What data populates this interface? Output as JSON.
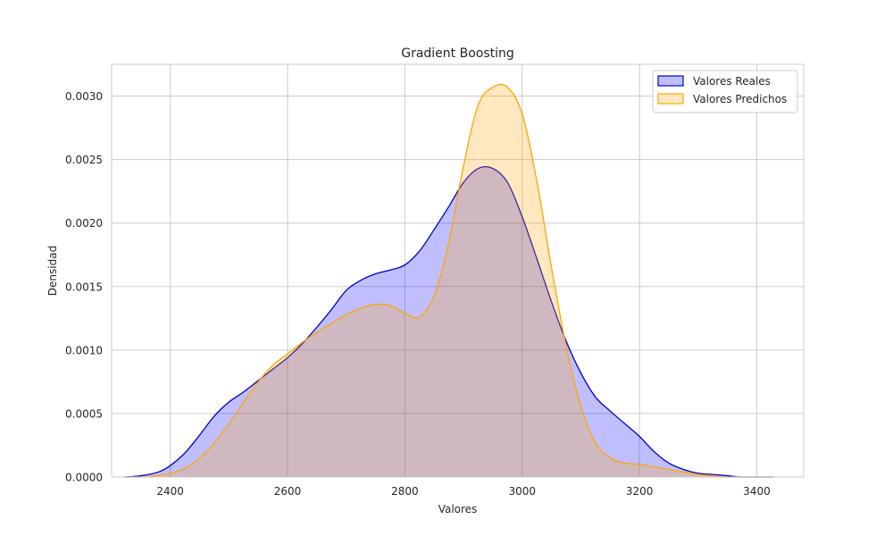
{
  "chart_data": {
    "type": "area",
    "title": "Gradient Boosting",
    "xlabel": "Valores",
    "ylabel": "Densidad",
    "xlim": [
      2300,
      3480
    ],
    "ylim": [
      0,
      0.00325
    ],
    "xticks": [
      2400,
      2600,
      2800,
      3000,
      3200,
      3400
    ],
    "yticks": [
      0.0,
      0.0005,
      0.001,
      0.0015,
      0.002,
      0.0025,
      0.003
    ],
    "xtick_labels": [
      "2400",
      "2600",
      "2800",
      "3000",
      "3200",
      "3400"
    ],
    "ytick_labels": [
      "0.0000",
      "0.0005",
      "0.0010",
      "0.0015",
      "0.0020",
      "0.0025",
      "0.0030"
    ],
    "grid": true,
    "legend_position": "top-right",
    "series": [
      {
        "name": "Valores Reales",
        "line_color": "#0000cc",
        "fill_color": "#0000ff",
        "fill_opacity": 0.25,
        "x": [
          2322,
          2350,
          2380,
          2400,
          2425,
          2450,
          2475,
          2500,
          2525,
          2550,
          2575,
          2600,
          2625,
          2650,
          2675,
          2700,
          2725,
          2750,
          2775,
          2800,
          2825,
          2850,
          2875,
          2900,
          2925,
          2950,
          2975,
          3000,
          3025,
          3050,
          3075,
          3100,
          3125,
          3150,
          3175,
          3200,
          3225,
          3250,
          3275,
          3300,
          3325,
          3350,
          3375,
          3400,
          3428
        ],
        "y": [
          0.0,
          1e-05,
          4e-05,
          9e-05,
          0.00019,
          0.00033,
          0.00048,
          0.00059,
          0.00067,
          0.00076,
          0.00085,
          0.00094,
          0.00105,
          0.00118,
          0.00132,
          0.00147,
          0.00155,
          0.0016,
          0.00163,
          0.00167,
          0.00178,
          0.00195,
          0.00213,
          0.00232,
          0.00243,
          0.00243,
          0.00232,
          0.00205,
          0.00172,
          0.00138,
          0.00107,
          0.00082,
          0.00063,
          0.00052,
          0.00042,
          0.00032,
          0.0002,
          0.00011,
          6e-05,
          3e-05,
          2e-05,
          1e-05,
          0.0,
          0.0,
          0.0
        ]
      },
      {
        "name": "Valores Predichos",
        "line_color": "#ffa500",
        "fill_color": "#ffa500",
        "fill_opacity": 0.25,
        "x": [
          2322,
          2350,
          2375,
          2400,
          2425,
          2450,
          2475,
          2500,
          2525,
          2550,
          2575,
          2600,
          2625,
          2650,
          2675,
          2700,
          2725,
          2750,
          2775,
          2800,
          2825,
          2850,
          2875,
          2900,
          2925,
          2950,
          2975,
          3000,
          3025,
          3050,
          3075,
          3100,
          3125,
          3150,
          3175,
          3200,
          3225,
          3250,
          3275,
          3300,
          3325,
          3350,
          3375,
          3400,
          3428
        ],
        "y": [
          0.0,
          0.0,
          1e-05,
          3e-05,
          7e-05,
          0.00015,
          0.00027,
          0.00042,
          0.00059,
          0.00075,
          0.00088,
          0.00097,
          0.00106,
          0.00114,
          0.00121,
          0.00128,
          0.00133,
          0.00136,
          0.00135,
          0.00129,
          0.00126,
          0.00143,
          0.00185,
          0.00245,
          0.00293,
          0.00307,
          0.00307,
          0.00286,
          0.00233,
          0.00165,
          0.00103,
          0.00056,
          0.00027,
          0.00015,
          0.00011,
          0.0001,
          8e-05,
          6e-05,
          4e-05,
          2e-05,
          1e-05,
          0.0,
          0.0,
          0.0,
          0.0
        ]
      }
    ]
  }
}
